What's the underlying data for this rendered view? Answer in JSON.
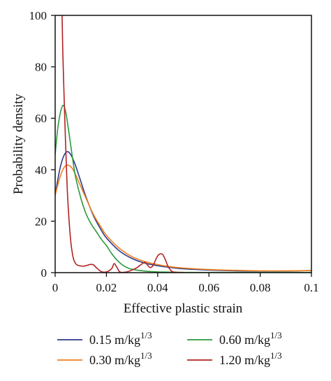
{
  "chart_data": {
    "type": "line",
    "title": "",
    "xlabel": "Effective plastic strain",
    "ylabel": "Probability density",
    "xlim": [
      0,
      0.1
    ],
    "ylim": [
      0,
      100
    ],
    "xticks": [
      0,
      0.02,
      0.04,
      0.06,
      0.08,
      0.1
    ],
    "xtick_labels": [
      "0",
      "0.02",
      "0.04",
      "0.06",
      "0.08",
      "0.1"
    ],
    "yticks": [
      0,
      20,
      40,
      60,
      80,
      100
    ],
    "ytick_labels": [
      "0",
      "20",
      "40",
      "60",
      "80",
      "100"
    ],
    "grid": false,
    "legend_position": "bottom",
    "series": [
      {
        "name": "0.15 m/kg",
        "name_sup": "1/3",
        "color": "#2e3a8c",
        "x": [
          0,
          0.001,
          0.002,
          0.003,
          0.004,
          0.005,
          0.006,
          0.007,
          0.008,
          0.01,
          0.012,
          0.015,
          0.018,
          0.02,
          0.025,
          0.03,
          0.035,
          0.04,
          0.045,
          0.05,
          0.06,
          0.07,
          0.08,
          0.09,
          0.1
        ],
        "y": [
          30,
          36,
          41,
          44.5,
          46.5,
          47,
          46,
          44,
          41.5,
          35.5,
          29.5,
          22,
          16.5,
          13.5,
          8.5,
          5.5,
          3.7,
          2.7,
          2.0,
          1.5,
          1.0,
          0.7,
          0.6,
          0.6,
          0.8
        ]
      },
      {
        "name": "0.30 m/kg",
        "name_sup": "1/3",
        "color": "#f07f1c",
        "x": [
          0,
          0.001,
          0.002,
          0.003,
          0.004,
          0.005,
          0.006,
          0.007,
          0.008,
          0.01,
          0.012,
          0.015,
          0.018,
          0.02,
          0.025,
          0.03,
          0.035,
          0.04,
          0.045,
          0.05,
          0.06,
          0.07,
          0.08,
          0.09,
          0.1
        ],
        "y": [
          30,
          34,
          37.5,
          40,
          41.5,
          41.8,
          41.3,
          40,
          38,
          33.5,
          29,
          22.5,
          17.5,
          14.5,
          9.5,
          6.2,
          4.3,
          3.1,
          2.3,
          1.8,
          1.2,
          0.9,
          0.7,
          0.7,
          0.8
        ]
      },
      {
        "name": "0.60 m/kg",
        "name_sup": "1/3",
        "color": "#2a9a3a",
        "x": [
          0,
          0.001,
          0.002,
          0.003,
          0.004,
          0.005,
          0.006,
          0.007,
          0.008,
          0.01,
          0.012,
          0.014,
          0.016,
          0.018,
          0.02,
          0.022,
          0.024,
          0.026,
          0.028,
          0.03,
          0.035,
          0.04,
          0.045,
          0.05,
          0.06,
          0.08,
          0.1
        ],
        "y": [
          46,
          56,
          62,
          65,
          63,
          57,
          50,
          43,
          37,
          29,
          23,
          19,
          16,
          13,
          10.5,
          7.5,
          5.0,
          3.2,
          2.0,
          1.3,
          0.6,
          0.3,
          0.2,
          0.1,
          0.1,
          0.1,
          0.1
        ]
      },
      {
        "name": "1.20 m/kg",
        "name_sup": "1/3",
        "color": "#b22222",
        "x": [
          0.0027,
          0.003,
          0.0035,
          0.004,
          0.0045,
          0.005,
          0.006,
          0.007,
          0.008,
          0.009,
          0.01,
          0.011,
          0.012,
          0.013,
          0.014,
          0.015,
          0.016,
          0.018,
          0.02,
          0.022,
          0.023,
          0.024,
          0.025,
          0.026,
          0.028,
          0.03,
          0.032,
          0.034,
          0.035,
          0.036,
          0.037,
          0.038,
          0.039,
          0.04,
          0.041,
          0.042,
          0.043,
          0.044,
          0.045,
          0.046,
          0.048,
          0.05
        ],
        "y": [
          100,
          85,
          68,
          52,
          38,
          27,
          13,
          6,
          3.5,
          2.8,
          2.6,
          2.5,
          2.7,
          3.0,
          3.2,
          3.0,
          2.0,
          0.4,
          0.3,
          1.5,
          3.5,
          2.2,
          0.5,
          0.1,
          0.3,
          1.0,
          2.0,
          3.5,
          4.0,
          3.0,
          2.0,
          2.5,
          4.5,
          6.5,
          7.3,
          7.0,
          5.0,
          2.5,
          1.0,
          0.3,
          0.1,
          0.1
        ]
      }
    ]
  }
}
